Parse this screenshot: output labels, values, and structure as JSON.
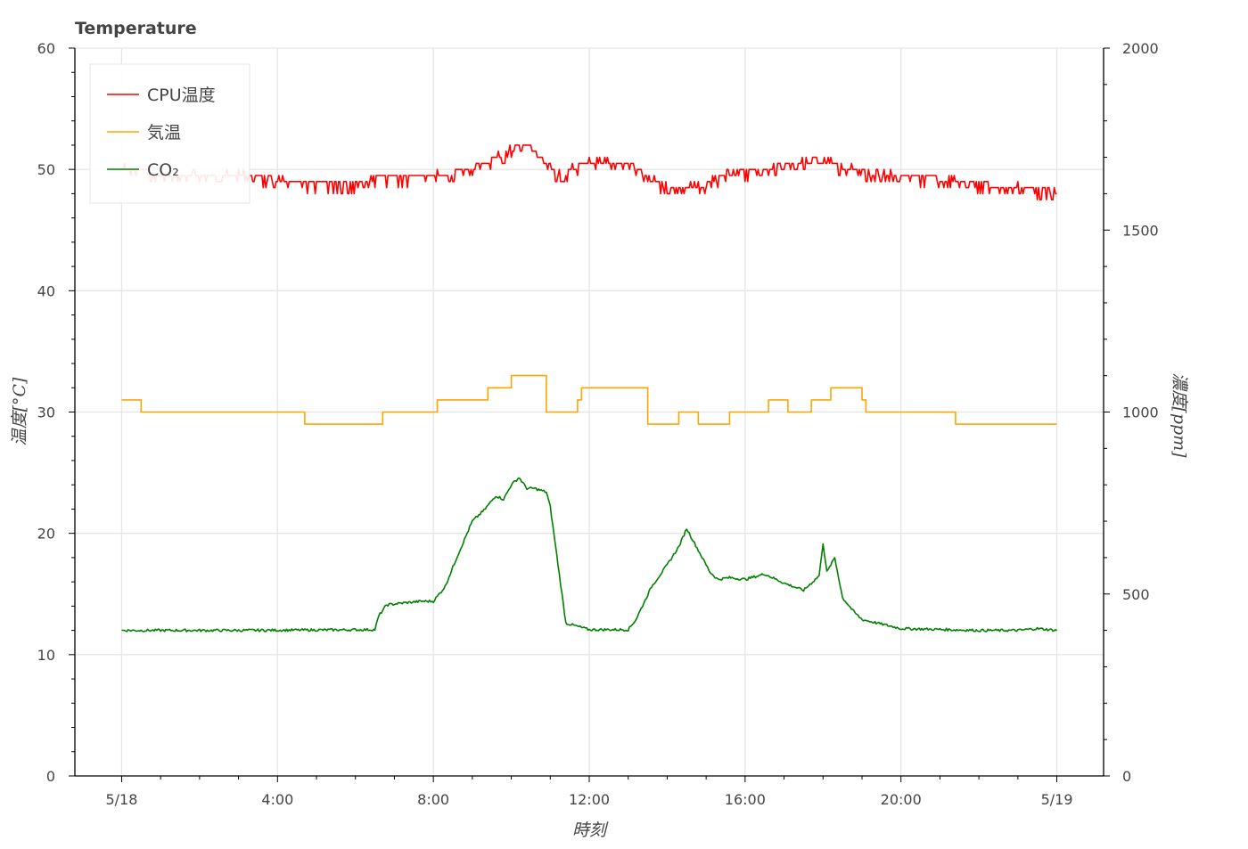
{
  "chart_data": {
    "type": "line",
    "title": "Temperature",
    "xlabel": "時刻",
    "ylabel": "温度[°C]",
    "y2label": "濃度[ppm]",
    "x_ticks": [
      "5/18",
      "4:00",
      "8:00",
      "12:00",
      "16:00",
      "20:00",
      "5/19"
    ],
    "x_unit": "hours since 5/18 00:00",
    "xlim": [
      -1.2,
      25.2
    ],
    "ylim": [
      0,
      60
    ],
    "y_ticks": [
      0,
      10,
      20,
      30,
      40,
      50,
      60
    ],
    "y2lim": [
      0,
      2000
    ],
    "y2_ticks": [
      0,
      500,
      1000,
      1500,
      2000
    ],
    "grid": true,
    "legend_position": "top-left",
    "series": [
      {
        "name": "CPU温度",
        "axis": "left",
        "color": "#ff0000",
        "x": [
          0,
          0.6,
          1.2,
          1.8,
          2.4,
          3,
          3.5,
          4,
          5,
          6,
          6.5,
          7,
          7.5,
          8,
          8.4,
          8.8,
          9.3,
          9.8,
          10.2,
          10.5,
          10.9,
          11.3,
          11.8,
          12.3,
          12.8,
          13.1,
          13.5,
          14,
          14.5,
          15,
          15.5,
          16,
          16.4,
          16.9,
          17.4,
          17.8,
          18.3,
          18.8,
          19.4,
          20,
          20.8,
          21.2,
          21.8,
          22.4,
          23,
          23.6,
          24
        ],
        "y": [
          50,
          49.8,
          49.6,
          49.5,
          49.5,
          49.6,
          49.4,
          49,
          48.8,
          48.8,
          49.3,
          49.3,
          49.3,
          49.4,
          49.7,
          49.9,
          50.5,
          51.2,
          52,
          51.8,
          50.2,
          49.5,
          50.4,
          50.6,
          50.5,
          50.4,
          49.2,
          48.6,
          48.6,
          48.7,
          49.6,
          49.8,
          50,
          50.4,
          50.5,
          50.8,
          50.4,
          50,
          49.6,
          49.4,
          49.3,
          49.1,
          48.9,
          48.7,
          48.5,
          48.3,
          48.2
        ],
        "noise": 0.6
      },
      {
        "name": "気温",
        "axis": "left",
        "color": "#ffa500",
        "x": [
          0,
          0.45,
          0.5,
          4.6,
          4.7,
          6.6,
          6.7,
          8,
          8.1,
          8.8,
          9.4,
          10,
          10.2,
          10.9,
          11.1,
          11.7,
          11.8,
          13.4,
          13.5,
          14,
          14.3,
          14.7,
          14.8,
          15.5,
          15.6,
          16.5,
          16.6,
          17,
          17.1,
          17.6,
          17.7,
          18.2,
          18.4,
          19,
          19.1,
          21.3,
          21.4,
          24
        ],
        "y": [
          31,
          31,
          30,
          30,
          29,
          29,
          30,
          30,
          31,
          31,
          32,
          33,
          33,
          30,
          30,
          31,
          32,
          32,
          29,
          29,
          30,
          30,
          29,
          29,
          30,
          30,
          31,
          31,
          30,
          30,
          31,
          32,
          32,
          31,
          30,
          30,
          29,
          29
        ],
        "noise": 0
      },
      {
        "name": "CO₂",
        "axis": "right",
        "color": "#008000",
        "x": [
          0,
          3,
          6.5,
          6.6,
          6.8,
          7.2,
          7.7,
          8,
          8.3,
          8.6,
          8.8,
          9,
          9.3,
          9.6,
          9.8,
          10,
          10.2,
          10.4,
          10.6,
          10.9,
          11,
          11.2,
          11.4,
          12,
          12.5,
          13,
          13.2,
          13.6,
          14,
          14.3,
          14.5,
          14.8,
          15.1,
          15.3,
          15.6,
          16,
          16.5,
          17,
          17.5,
          17.9,
          18,
          18.1,
          18.3,
          18.5,
          18.8,
          19,
          20,
          22,
          23,
          23.5,
          24
        ],
        "y": [
          400,
          400,
          402,
          440,
          470,
          475,
          480,
          480,
          520,
          600,
          650,
          700,
          730,
          770,
          760,
          800,
          820,
          790,
          790,
          780,
          740,
          580,
          420,
          402,
          402,
          402,
          430,
          520,
          580,
          630,
          680,
          620,
          560,
          540,
          545,
          540,
          555,
          530,
          510,
          550,
          640,
          560,
          600,
          490,
          450,
          430,
          405,
          400,
          400,
          405,
          400
        ],
        "noise": 7
      }
    ]
  }
}
